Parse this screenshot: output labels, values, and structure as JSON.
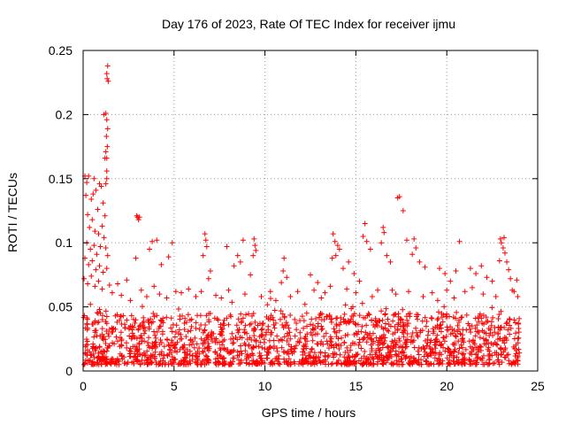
{
  "chart_data": {
    "type": "scatter",
    "title": "Day 176 of 2023, Rate Of TEC Index for receiver ijmu",
    "xlabel": "GPS time / hours",
    "ylabel": "ROTI / TECUs",
    "xlim": [
      0,
      25
    ],
    "ylim": [
      0,
      0.25
    ],
    "xticks": [
      0,
      5,
      10,
      15,
      20,
      25
    ],
    "xtick_labels": [
      "0",
      "5",
      "10",
      "15",
      "20",
      "25"
    ],
    "yticks": [
      0,
      0.05,
      0.1,
      0.15,
      0.2,
      0.25
    ],
    "ytick_labels": [
      "0",
      "0.05",
      "0.1",
      "0.15",
      "0.2",
      "0.25"
    ],
    "grid": true,
    "marker": "+",
    "color": "#ff0000",
    "series": [
      {
        "name": "ROTI",
        "points": [
          [
            1.35,
            0.238
          ],
          [
            1.3,
            0.232
          ],
          [
            1.38,
            0.226
          ],
          [
            1.32,
            0.228
          ],
          [
            1.15,
            0.2
          ],
          [
            1.25,
            0.201
          ],
          [
            1.3,
            0.196
          ],
          [
            1.35,
            0.189
          ],
          [
            1.28,
            0.183
          ],
          [
            1.33,
            0.175
          ],
          [
            1.25,
            0.171
          ],
          [
            1.3,
            0.166
          ],
          [
            1.2,
            0.166
          ],
          [
            1.3,
            0.156
          ],
          [
            1.25,
            0.146
          ],
          [
            1.3,
            0.15
          ],
          [
            0.1,
            0.152
          ],
          [
            0.2,
            0.147
          ],
          [
            0.3,
            0.152
          ],
          [
            0.6,
            0.15
          ],
          [
            0.7,
            0.141
          ],
          [
            0.9,
            0.146
          ],
          [
            1.0,
            0.144
          ],
          [
            0.15,
            0.137
          ],
          [
            0.45,
            0.134
          ],
          [
            0.55,
            0.138
          ],
          [
            0.8,
            0.126
          ],
          [
            1.1,
            0.131
          ],
          [
            1.2,
            0.121
          ],
          [
            0.25,
            0.122
          ],
          [
            0.5,
            0.118
          ],
          [
            0.35,
            0.112
          ],
          [
            0.65,
            0.109
          ],
          [
            0.85,
            0.107
          ],
          [
            1.05,
            0.113
          ],
          [
            1.15,
            0.104
          ],
          [
            0.2,
            0.1
          ],
          [
            0.4,
            0.095
          ],
          [
            0.6,
            0.098
          ],
          [
            0.75,
            0.091
          ],
          [
            0.95,
            0.097
          ],
          [
            1.25,
            0.096
          ],
          [
            1.35,
            0.09
          ],
          [
            0.1,
            0.088
          ],
          [
            0.3,
            0.083
          ],
          [
            0.5,
            0.086
          ],
          [
            0.7,
            0.079
          ],
          [
            0.9,
            0.082
          ],
          [
            1.1,
            0.077
          ],
          [
            1.3,
            0.08
          ],
          [
            0.05,
            0.072
          ],
          [
            0.25,
            0.068
          ],
          [
            0.45,
            0.074
          ],
          [
            0.65,
            0.066
          ],
          [
            0.85,
            0.07
          ],
          [
            1.05,
            0.064
          ],
          [
            1.45,
            0.067
          ],
          [
            2.95,
            0.121
          ],
          [
            3.05,
            0.118
          ],
          [
            3.0,
            0.12
          ],
          [
            3.1,
            0.12
          ],
          [
            2.9,
            0.088
          ],
          [
            3.8,
            0.101
          ],
          [
            4.05,
            0.102
          ],
          [
            3.65,
            0.095
          ],
          [
            4.3,
            0.083
          ],
          [
            4.9,
            0.1
          ],
          [
            4.7,
            0.089
          ],
          [
            6.7,
            0.107
          ],
          [
            6.75,
            0.102
          ],
          [
            6.8,
            0.097
          ],
          [
            6.6,
            0.09
          ],
          [
            7.0,
            0.078
          ],
          [
            6.9,
            0.072
          ],
          [
            7.9,
            0.097
          ],
          [
            8.3,
            0.082
          ],
          [
            8.5,
            0.09
          ],
          [
            8.8,
            0.102
          ],
          [
            8.65,
            0.085
          ],
          [
            9.4,
            0.103
          ],
          [
            9.45,
            0.098
          ],
          [
            9.35,
            0.09
          ],
          [
            9.5,
            0.094
          ],
          [
            9.2,
            0.075
          ],
          [
            11.05,
            0.088
          ],
          [
            11.0,
            0.078
          ],
          [
            11.2,
            0.073
          ],
          [
            10.9,
            0.069
          ],
          [
            12.5,
            0.075
          ],
          [
            12.7,
            0.063
          ],
          [
            12.9,
            0.069
          ],
          [
            13.1,
            0.057
          ],
          [
            13.75,
            0.107
          ],
          [
            13.85,
            0.101
          ],
          [
            14.0,
            0.098
          ],
          [
            14.1,
            0.095
          ],
          [
            13.9,
            0.09
          ],
          [
            13.7,
            0.088
          ],
          [
            14.3,
            0.08
          ],
          [
            14.6,
            0.085
          ],
          [
            14.9,
            0.076
          ],
          [
            15.2,
            0.07
          ],
          [
            15.5,
            0.115
          ],
          [
            15.4,
            0.105
          ],
          [
            15.6,
            0.101
          ],
          [
            15.8,
            0.095
          ],
          [
            16.5,
            0.112
          ],
          [
            16.55,
            0.108
          ],
          [
            16.4,
            0.1
          ],
          [
            16.7,
            0.09
          ],
          [
            16.9,
            0.085
          ],
          [
            17.4,
            0.136
          ],
          [
            17.3,
            0.135
          ],
          [
            17.6,
            0.125
          ],
          [
            17.8,
            0.102
          ],
          [
            18.2,
            0.103
          ],
          [
            18.3,
            0.096
          ],
          [
            18.1,
            0.091
          ],
          [
            18.5,
            0.085
          ],
          [
            18.8,
            0.081
          ],
          [
            19.6,
            0.08
          ],
          [
            19.9,
            0.076
          ],
          [
            20.2,
            0.07
          ],
          [
            20.7,
            0.101
          ],
          [
            20.5,
            0.078
          ],
          [
            21.3,
            0.08
          ],
          [
            21.6,
            0.076
          ],
          [
            21.9,
            0.082
          ],
          [
            22.2,
            0.073
          ],
          [
            22.5,
            0.07
          ],
          [
            22.95,
            0.103
          ],
          [
            23.0,
            0.1
          ],
          [
            23.15,
            0.104
          ],
          [
            23.1,
            0.096
          ],
          [
            23.2,
            0.092
          ],
          [
            22.9,
            0.086
          ],
          [
            23.3,
            0.085
          ],
          [
            23.4,
            0.079
          ],
          [
            23.5,
            0.072
          ],
          [
            23.6,
            0.063
          ],
          [
            23.85,
            0.071
          ],
          [
            0.4,
            0.052
          ],
          [
            0.9,
            0.048
          ],
          [
            1.6,
            0.061
          ],
          [
            1.9,
            0.068
          ],
          [
            2.1,
            0.059
          ],
          [
            2.4,
            0.071
          ],
          [
            2.6,
            0.055
          ],
          [
            3.2,
            0.063
          ],
          [
            3.5,
            0.058
          ],
          [
            3.9,
            0.066
          ],
          [
            4.2,
            0.06
          ],
          [
            4.6,
            0.057
          ],
          [
            5.1,
            0.062
          ],
          [
            5.4,
            0.061
          ],
          [
            5.8,
            0.064
          ],
          [
            6.2,
            0.058
          ],
          [
            6.5,
            0.062
          ],
          [
            7.3,
            0.059
          ],
          [
            7.6,
            0.057
          ],
          [
            8.0,
            0.063
          ],
          [
            8.9,
            0.06
          ],
          [
            9.8,
            0.058
          ],
          [
            10.3,
            0.062
          ],
          [
            10.6,
            0.055
          ],
          [
            11.4,
            0.058
          ],
          [
            11.8,
            0.062
          ],
          [
            12.2,
            0.052
          ],
          [
            13.3,
            0.061
          ],
          [
            13.6,
            0.066
          ],
          [
            14.5,
            0.064
          ],
          [
            15.0,
            0.061
          ],
          [
            15.9,
            0.058
          ],
          [
            16.2,
            0.063
          ],
          [
            17.0,
            0.063
          ],
          [
            17.2,
            0.06
          ],
          [
            17.9,
            0.062
          ],
          [
            18.7,
            0.058
          ],
          [
            19.2,
            0.061
          ],
          [
            19.5,
            0.055
          ],
          [
            20.0,
            0.063
          ],
          [
            20.4,
            0.057
          ],
          [
            21.0,
            0.062
          ],
          [
            21.4,
            0.065
          ],
          [
            22.0,
            0.06
          ],
          [
            22.7,
            0.058
          ],
          [
            23.7,
            0.062
          ],
          [
            23.9,
            0.058
          ]
        ],
        "band": {
          "description": "dense cloud of points near the baseline",
          "x_range": [
            0,
            24
          ],
          "typical_min": 0.005,
          "typical_max": 0.045
        }
      }
    ]
  }
}
